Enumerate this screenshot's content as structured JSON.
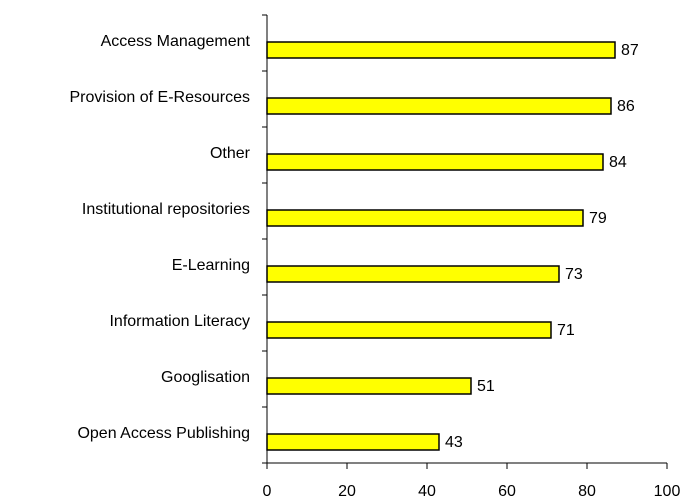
{
  "chart_data": {
    "type": "bar",
    "orientation": "horizontal",
    "categories": [
      "Access Management",
      "Provision of E-Resources",
      "Other",
      "Institutional repositories",
      "E-Learning",
      "Information Literacy",
      "Googlisation",
      "Open Access Publishing"
    ],
    "values": [
      87,
      86,
      84,
      79,
      73,
      71,
      51,
      43
    ],
    "color": "#ffff00",
    "xlim": [
      0,
      100
    ],
    "xticks": [
      0,
      20,
      40,
      60,
      80,
      100
    ],
    "grid": false
  }
}
